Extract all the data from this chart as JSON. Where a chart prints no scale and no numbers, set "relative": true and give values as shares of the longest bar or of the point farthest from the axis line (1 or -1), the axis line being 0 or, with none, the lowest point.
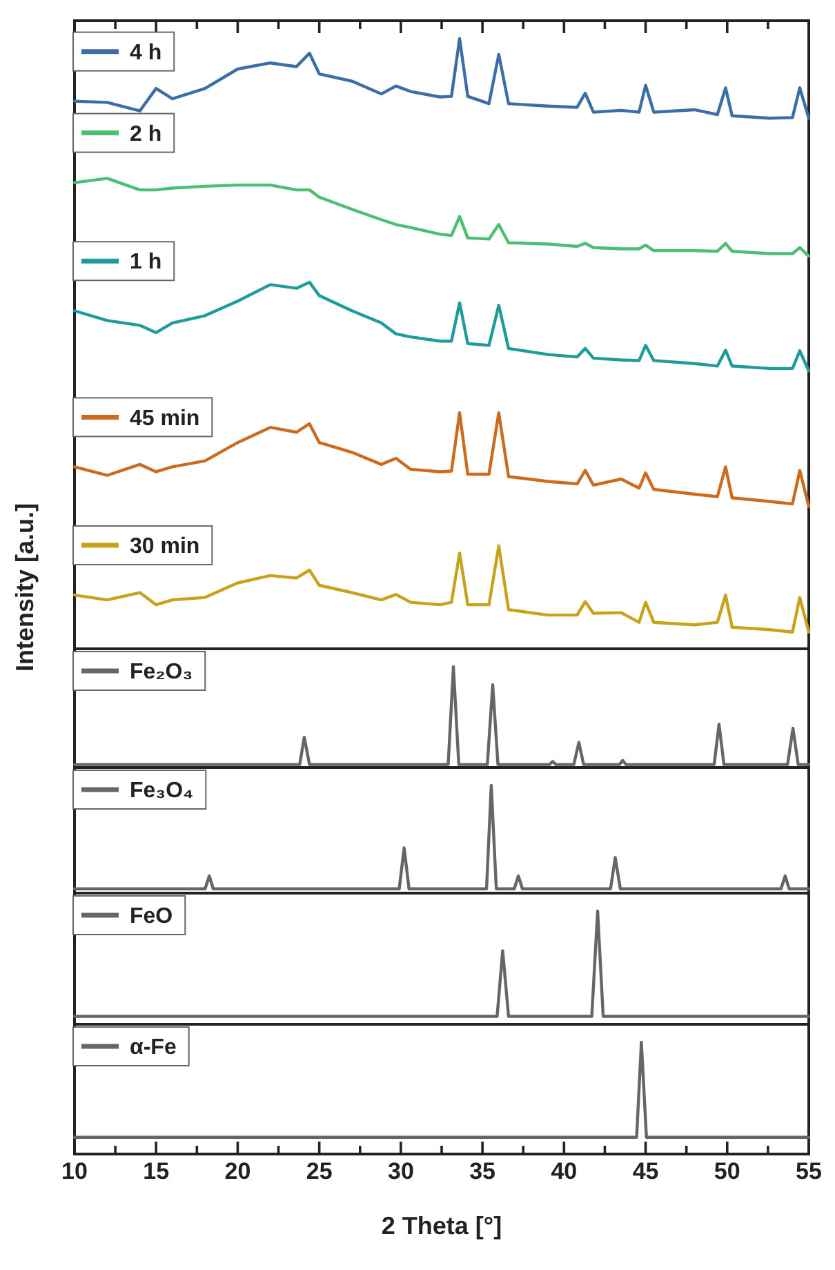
{
  "chart_data": [
    {
      "type": "line",
      "relative": true,
      "ylabel": "Intensity [a.u.]",
      "xlim": [
        10,
        55
      ],
      "xticks": [
        10,
        {
          "value": 12.5,
          "label": null
        },
        15,
        {
          "value": 17.5,
          "label": null
        },
        20,
        {
          "value": 22.5,
          "label": null
        },
        25,
        {
          "value": 27.5,
          "label": null
        },
        30,
        {
          "value": 32.5,
          "label": null
        },
        35,
        {
          "value": 37.5,
          "label": null
        },
        40,
        {
          "value": 42.5,
          "label": null
        },
        45,
        {
          "value": 47.5,
          "label": null
        },
        50,
        {
          "value": 52.5,
          "label": null
        },
        55
      ],
      "tick_labels": false,
      "legend": "top left",
      "x": [
        10,
        12,
        14,
        15,
        16,
        18,
        20,
        22,
        23.6,
        24.4,
        25,
        27,
        28.8,
        29.7,
        30.6,
        32.4,
        33.1,
        33.6,
        34.1,
        35.4,
        36,
        36.6,
        39,
        40.8,
        41.3,
        41.8,
        43.5,
        44.6,
        45,
        45.5,
        48,
        49.4,
        49.9,
        50.3,
        52.6,
        54,
        54.45,
        55
      ],
      "series": [
        {
          "name": "4 h",
          "color": "#3b6ea5",
          "values": [
            0.897,
            0.895,
            0.881,
            0.918,
            0.901,
            0.918,
            0.95,
            0.96,
            0.954,
            0.976,
            0.942,
            0.93,
            0.909,
            0.922,
            0.913,
            0.904,
            0.905,
            1,
            0.905,
            0.893,
            0.974,
            0.893,
            0.889,
            0.887,
            0.91,
            0.879,
            0.882,
            0.879,
            0.923,
            0.879,
            0.883,
            0.875,
            0.919,
            0.873,
            0.869,
            0.87,
            0.919,
            0.869
          ]
        },
        {
          "name": "2 h",
          "color": "#4cbf75",
          "values": [
            0.763,
            0.77,
            0.751,
            0.751,
            0.754,
            0.757,
            0.759,
            0.759,
            0.751,
            0.751,
            0.739,
            0.719,
            0.702,
            0.694,
            0.689,
            0.678,
            0.676,
            0.707,
            0.672,
            0.67,
            0.694,
            0.664,
            0.662,
            0.658,
            0.663,
            0.656,
            0.654,
            0.654,
            0.66,
            0.651,
            0.651,
            0.65,
            0.663,
            0.65,
            0.646,
            0.646,
            0.656,
            0.642
          ]
        },
        {
          "name": "1 h",
          "color": "#1f9c9a",
          "values": [
            0.552,
            0.536,
            0.528,
            0.516,
            0.532,
            0.544,
            0.568,
            0.595,
            0.589,
            0.599,
            0.577,
            0.552,
            0.532,
            0.514,
            0.509,
            0.502,
            0.502,
            0.565,
            0.498,
            0.495,
            0.561,
            0.49,
            0.48,
            0.476,
            0.49,
            0.474,
            0.471,
            0.47,
            0.495,
            0.47,
            0.465,
            0.461,
            0.487,
            0.461,
            0.457,
            0.457,
            0.486,
            0.453
          ]
        },
        {
          "name": "45 min",
          "color": "#cc6a1e",
          "values": [
            0.295,
            0.281,
            0.299,
            0.287,
            0.295,
            0.305,
            0.335,
            0.36,
            0.352,
            0.366,
            0.335,
            0.319,
            0.299,
            0.309,
            0.291,
            0.287,
            0.288,
            0.384,
            0.283,
            0.283,
            0.384,
            0.279,
            0.271,
            0.267,
            0.289,
            0.265,
            0.275,
            0.26,
            0.285,
            0.258,
            0.25,
            0.246,
            0.295,
            0.244,
            0.238,
            0.234,
            0.289,
            0.23
          ]
        },
        {
          "name": "30 min",
          "color": "#c9a21c",
          "values": [
            0.084,
            0.076,
            0.088,
            0.068,
            0.076,
            0.08,
            0.104,
            0.116,
            0.112,
            0.125,
            0.1,
            0.088,
            0.076,
            0.085,
            0.072,
            0.068,
            0.072,
            0.153,
            0.068,
            0.068,
            0.165,
            0.06,
            0.051,
            0.051,
            0.073,
            0.054,
            0.055,
            0.039,
            0.072,
            0.039,
            0.035,
            0.039,
            0.084,
            0.031,
            0.027,
            0.023,
            0.08,
            0.023
          ]
        }
      ]
    },
    {
      "type": "line",
      "relative": true,
      "xlim": [
        10,
        55
      ],
      "tick_labels": false,
      "legend": "top left",
      "x": [
        10,
        23.8,
        24.08,
        24.4,
        32.9,
        33.22,
        33.55,
        35.3,
        35.63,
        35.95,
        39.1,
        39.31,
        39.5,
        40.6,
        40.91,
        41.2,
        43.4,
        43.59,
        43.8,
        49.2,
        49.5,
        49.8,
        53.7,
        54.03,
        54.35,
        55
      ],
      "series": [
        {
          "name": "Fe₂O₃",
          "color": "#666666",
          "values": [
            0.03,
            0.03,
            0.3,
            0.03,
            0.03,
            1,
            0.03,
            0.03,
            0.82,
            0.03,
            0.03,
            0.06,
            0.03,
            0.03,
            0.25,
            0.03,
            0.03,
            0.07,
            0.03,
            0.03,
            0.43,
            0.03,
            0.03,
            0.39,
            0.03,
            0.03
          ]
        }
      ]
    },
    {
      "type": "line",
      "relative": true,
      "xlim": [
        10,
        55
      ],
      "tick_labels": false,
      "legend": "top left",
      "x": [
        10,
        18,
        18.26,
        18.5,
        29.9,
        30.2,
        30.5,
        35.25,
        35.54,
        35.85,
        36.95,
        37.2,
        37.45,
        42.85,
        43.14,
        43.45,
        53.3,
        53.55,
        53.8,
        55
      ],
      "series": [
        {
          "name": "Fe₃O₄",
          "color": "#666666",
          "values": [
            0.04,
            0.04,
            0.16,
            0.04,
            0.04,
            0.42,
            0.04,
            0.04,
            1,
            0.04,
            0.04,
            0.16,
            0.04,
            0.04,
            0.33,
            0.04,
            0.04,
            0.16,
            0.04,
            0.04
          ]
        }
      ]
    },
    {
      "type": "line",
      "relative": true,
      "xlim": [
        10,
        55
      ],
      "tick_labels": false,
      "legend": "top left",
      "x": [
        10,
        35.9,
        36.24,
        36.6,
        41.7,
        42.06,
        42.4,
        55
      ],
      "series": [
        {
          "name": "FeO",
          "color": "#666666",
          "values": [
            0.07,
            0.07,
            0.65,
            0.07,
            0.07,
            1,
            0.07,
            0.07
          ]
        }
      ]
    },
    {
      "type": "line",
      "relative": true,
      "xlabel": "2 Theta [°]",
      "xlim": [
        10,
        55
      ],
      "xticks": [
        10,
        {
          "value": 12.5,
          "label": null
        },
        15,
        {
          "value": 17.5,
          "label": null
        },
        20,
        {
          "value": 22.5,
          "label": null
        },
        25,
        {
          "value": 27.5,
          "label": null
        },
        30,
        {
          "value": 32.5,
          "label": null
        },
        35,
        {
          "value": 37.5,
          "label": null
        },
        40,
        {
          "value": 42.5,
          "label": null
        },
        45,
        {
          "value": 47.5,
          "label": null
        },
        50,
        {
          "value": 52.5,
          "label": null
        },
        55
      ],
      "tick_labels": "x",
      "legend": "top left",
      "x": [
        10,
        44.45,
        44.74,
        45.05,
        55
      ],
      "series": [
        {
          "name": "α-Fe",
          "color": "#666666",
          "values": [
            0.15,
            0.15,
            1,
            0.15,
            0.15
          ]
        }
      ]
    }
  ]
}
